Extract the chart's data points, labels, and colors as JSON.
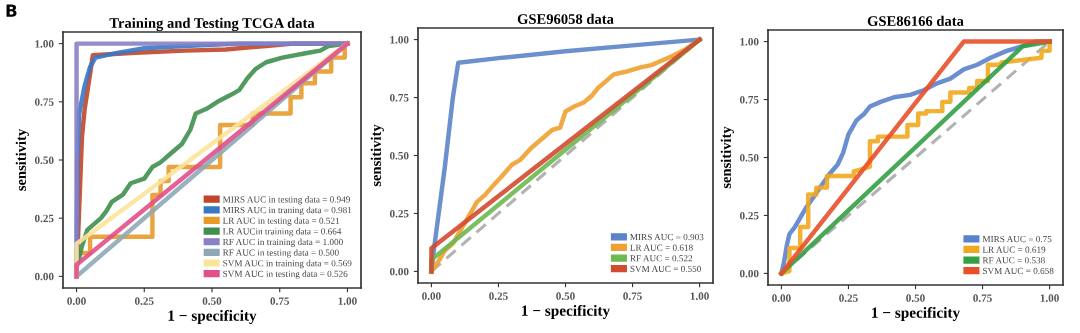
{
  "chart_data": [
    {
      "type": "line",
      "title": "Training and Testing TCGA data",
      "xlabel": "1 − specificity",
      "ylabel": "sensitivity",
      "annotations": [
        "B"
      ],
      "legend": "bottom right",
      "grid": false,
      "marker": "none",
      "xlim": [
        -0.05,
        1.05
      ],
      "ylim": [
        -0.05,
        1.05
      ],
      "xticks": [
        {
          "value": 0,
          "label": "0.00"
        },
        {
          "value": 0.25,
          "label": "0.25"
        },
        {
          "value": 0.5,
          "label": "0.50"
        },
        {
          "value": 0.75,
          "label": "0.75"
        },
        {
          "value": 1,
          "label": "1.00"
        }
      ],
      "yticks": [
        {
          "value": 0,
          "label": "0.00"
        },
        {
          "value": 0.25,
          "label": "0.25"
        },
        {
          "value": 0.5,
          "label": "0.50"
        },
        {
          "value": 0.75,
          "label": "0.75"
        },
        {
          "value": 1,
          "label": "1.00"
        }
      ],
      "series": [
        {
          "name": "MIRS AUC in testing data = 0.949",
          "color": "#c0462a",
          "x": [
            0,
            0.01,
            0.02,
            0.03,
            0.05,
            0.06,
            0.2,
            0.4,
            0.55,
            0.7,
            0.8,
            1
          ],
          "values": [
            0,
            0.3,
            0.6,
            0.72,
            0.87,
            0.95,
            0.96,
            0.97,
            0.975,
            0.99,
            1,
            1
          ]
        },
        {
          "name": "MIRS AUC in traning data = 0.981",
          "color": "#3a78c4",
          "x": [
            0,
            0.003,
            0.01,
            0.03,
            0.05,
            0.07,
            0.15,
            0.25,
            0.4,
            0.6,
            1
          ],
          "values": [
            0,
            0.5,
            0.7,
            0.82,
            0.9,
            0.94,
            0.96,
            0.98,
            0.99,
            1,
            1
          ]
        },
        {
          "name": "LR AUC in testing data = 0.521",
          "color": "#e89a2a",
          "x": [
            0,
            0,
            0.05,
            0.05,
            0.28,
            0.28,
            0.31,
            0.31,
            0.34,
            0.34,
            0.5,
            0.5,
            0.53,
            0.53,
            0.65,
            0.65,
            0.79,
            0.79,
            0.83,
            0.83,
            0.88,
            0.88,
            0.94,
            0.94,
            0.99,
            0.99
          ],
          "values": [
            0,
            0.1,
            0.1,
            0.17,
            0.17,
            0.35,
            0.35,
            0.41,
            0.41,
            0.47,
            0.47,
            0.47,
            0.47,
            0.65,
            0.65,
            0.7,
            0.7,
            0.77,
            0.77,
            0.83,
            0.83,
            0.88,
            0.88,
            0.94,
            0.94,
            1.0
          ]
        },
        {
          "name": "LR AUCin training data = 0.664",
          "color": "#3f8f4e",
          "x": [
            0,
            0.01,
            0.02,
            0.04,
            0.06,
            0.09,
            0.11,
            0.13,
            0.17,
            0.2,
            0.25,
            0.28,
            0.31,
            0.35,
            0.39,
            0.42,
            0.44,
            0.48,
            0.52,
            0.57,
            0.6,
            0.63,
            0.66,
            0.7,
            0.76,
            0.85,
            0.9,
            0.93,
            1
          ],
          "values": [
            0.05,
            0.08,
            0.13,
            0.2,
            0.22,
            0.25,
            0.28,
            0.32,
            0.35,
            0.4,
            0.42,
            0.47,
            0.49,
            0.53,
            0.57,
            0.63,
            0.7,
            0.72,
            0.75,
            0.78,
            0.8,
            0.85,
            0.89,
            0.92,
            0.94,
            0.96,
            0.97,
            0.99,
            1
          ]
        },
        {
          "name": "RF AUC in training data = 1.000",
          "color": "#8a80c8",
          "x": [
            0,
            0,
            1
          ],
          "values": [
            0,
            1,
            1
          ]
        },
        {
          "name": "RF AUC in testing data = 0.500",
          "color": "#8fa8b8",
          "x": [
            0,
            1
          ],
          "values": [
            0,
            1
          ]
        },
        {
          "name": "SVM AUC in training data = 0.569",
          "color": "#fbe39a",
          "x": [
            0,
            0,
            1
          ],
          "values": [
            0,
            0.14,
            1
          ]
        },
        {
          "name": "SVM AUC in testing data = 0.526",
          "color": "#e0508a",
          "x": [
            0,
            0,
            1
          ],
          "values": [
            0,
            0.05,
            1
          ]
        }
      ]
    },
    {
      "type": "line",
      "title": "GSE96058 data",
      "xlabel": "1 − specificity",
      "ylabel": "sensitivity",
      "legend": "bottom right",
      "grid": false,
      "marker": "none",
      "xlim": [
        -0.05,
        1.05
      ],
      "ylim": [
        -0.05,
        1.05
      ],
      "xticks": [
        {
          "value": 0,
          "label": "0.00"
        },
        {
          "value": 0.25,
          "label": "0.25"
        },
        {
          "value": 0.5,
          "label": "0.50"
        },
        {
          "value": 0.75,
          "label": "0.75"
        },
        {
          "value": 1,
          "label": "1.00"
        }
      ],
      "yticks": [
        {
          "value": 0,
          "label": "0.00"
        },
        {
          "value": 0.25,
          "label": "0.25"
        },
        {
          "value": 0.5,
          "label": "0.50"
        },
        {
          "value": 0.75,
          "label": "0.75"
        },
        {
          "value": 1,
          "label": "1.00"
        }
      ],
      "series": [
        {
          "color": "#aaaaaa",
          "line_style": "dashed",
          "x": [
            0,
            1
          ],
          "values": [
            0,
            1
          ]
        },
        {
          "name": "MIRS AUC = 0.903",
          "color": "#5b84c8",
          "x": [
            0,
            0.01,
            0.05,
            0.08,
            0.1,
            0.25,
            0.5,
            0.75,
            1
          ],
          "values": [
            0,
            0.1,
            0.45,
            0.75,
            0.9,
            0.92,
            0.95,
            0.975,
            1
          ]
        },
        {
          "name": "LR AUC = 0.618",
          "color": "#f0a030",
          "x": [
            0,
            0.01,
            0.03,
            0.05,
            0.08,
            0.12,
            0.15,
            0.17,
            0.2,
            0.23,
            0.27,
            0.3,
            0.33,
            0.37,
            0.42,
            0.45,
            0.48,
            0.5,
            0.53,
            0.57,
            0.6,
            0.62,
            0.65,
            0.68,
            0.72,
            0.78,
            0.82,
            0.86,
            0.9,
            0.95,
            1
          ],
          "values": [
            0,
            0.02,
            0.05,
            0.09,
            0.12,
            0.2,
            0.26,
            0.3,
            0.33,
            0.37,
            0.42,
            0.46,
            0.48,
            0.53,
            0.58,
            0.61,
            0.62,
            0.69,
            0.71,
            0.73,
            0.76,
            0.79,
            0.82,
            0.85,
            0.86,
            0.88,
            0.89,
            0.91,
            0.93,
            0.96,
            1
          ]
        },
        {
          "name": "RF AUC = 0.522",
          "color": "#6db850",
          "x": [
            0,
            0,
            1
          ],
          "values": [
            0,
            0.05,
            1
          ]
        },
        {
          "name": "SVM AUC = 0.550",
          "color": "#d24b30",
          "x": [
            0,
            0,
            1
          ],
          "values": [
            0,
            0.1,
            1
          ]
        }
      ]
    },
    {
      "type": "line",
      "title": "GSE86166 data",
      "xlabel": "1 − specificity",
      "ylabel": "sensitivity",
      "legend": "bottom right",
      "grid": false,
      "marker": "none",
      "xlim": [
        -0.05,
        1.05
      ],
      "ylim": [
        -0.05,
        1.05
      ],
      "xticks": [
        {
          "value": 0,
          "label": "0.00"
        },
        {
          "value": 0.25,
          "label": "0.25"
        },
        {
          "value": 0.5,
          "label": "0.50"
        },
        {
          "value": 0.75,
          "label": "0.75"
        },
        {
          "value": 1,
          "label": "1.00"
        }
      ],
      "yticks": [
        {
          "value": 0,
          "label": "0.00"
        },
        {
          "value": 0.25,
          "label": "0.25"
        },
        {
          "value": 0.5,
          "label": "0.50"
        },
        {
          "value": 0.75,
          "label": "0.75"
        },
        {
          "value": 1,
          "label": "1.00"
        }
      ],
      "series": [
        {
          "color": "#aaaaaa",
          "line_style": "dashed",
          "x": [
            0,
            1
          ],
          "values": [
            0,
            1
          ]
        },
        {
          "name": "MIRS AUC = 0.75",
          "color": "#5a82cc",
          "x": [
            0,
            0.01,
            0.02,
            0.03,
            0.05,
            0.07,
            0.09,
            0.12,
            0.15,
            0.18,
            0.21,
            0.23,
            0.25,
            0.28,
            0.31,
            0.33,
            0.37,
            0.42,
            0.48,
            0.53,
            0.58,
            0.63,
            0.68,
            0.73,
            0.78,
            0.84,
            0.9,
            0.95,
            1
          ],
          "values": [
            0,
            0.05,
            0.12,
            0.17,
            0.2,
            0.24,
            0.28,
            0.33,
            0.38,
            0.43,
            0.47,
            0.52,
            0.6,
            0.66,
            0.69,
            0.72,
            0.74,
            0.76,
            0.77,
            0.79,
            0.82,
            0.84,
            0.88,
            0.9,
            0.93,
            0.96,
            0.98,
            1,
            1
          ]
        },
        {
          "name": "LR AUC = 0.619",
          "color": "#f2a81e",
          "x": [
            0,
            0.03,
            0.03,
            0.07,
            0.07,
            0.1,
            0.1,
            0.13,
            0.13,
            0.17,
            0.17,
            0.27,
            0.27,
            0.33,
            0.33,
            0.36,
            0.36,
            0.47,
            0.47,
            0.51,
            0.51,
            0.54,
            0.54,
            0.6,
            0.6,
            0.63,
            0.63,
            0.7,
            0.7,
            0.73,
            0.73,
            0.77,
            0.77,
            0.82,
            0.82,
            0.97,
            0.97,
            1,
            1
          ],
          "values": [
            0,
            0.01,
            0.11,
            0.11,
            0.2,
            0.2,
            0.34,
            0.34,
            0.37,
            0.37,
            0.42,
            0.42,
            0.44,
            0.46,
            0.57,
            0.57,
            0.59,
            0.59,
            0.64,
            0.64,
            0.69,
            0.69,
            0.7,
            0.7,
            0.74,
            0.74,
            0.78,
            0.78,
            0.8,
            0.8,
            0.83,
            0.83,
            0.9,
            0.9,
            0.91,
            0.93,
            0.96,
            0.96,
            1
          ]
        },
        {
          "name": "RF AUC = 0.538",
          "color": "#33a044",
          "x": [
            0,
            0.9,
            1
          ],
          "values": [
            0,
            0.98,
            1
          ]
        },
        {
          "name": "SVM AUC = 0.658",
          "color": "#e8502a",
          "x": [
            0,
            0.68,
            1
          ],
          "values": [
            0,
            1,
            1
          ]
        }
      ]
    }
  ]
}
